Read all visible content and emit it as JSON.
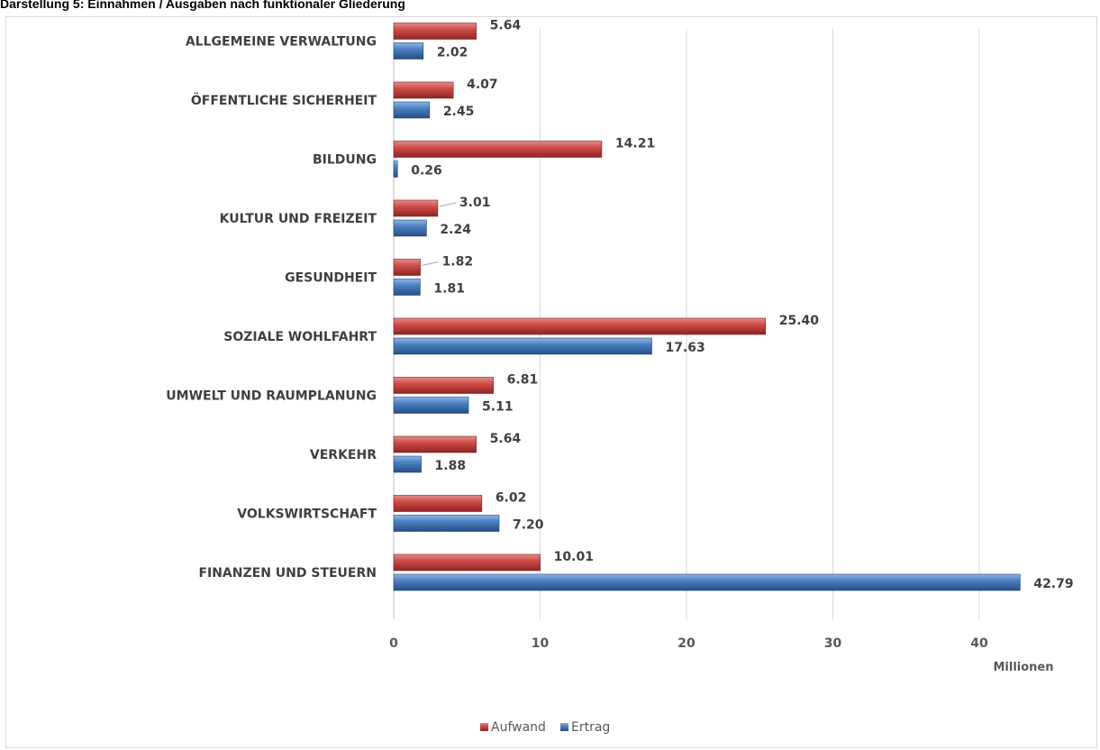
{
  "page": {
    "title": "Darstellung 5: Einnahmen / Ausgaben nach funktionaler Gliederung"
  },
  "chart_data": {
    "type": "bar",
    "orientation": "horizontal",
    "categories": [
      "ALLGEMEINE VERWALTUNG",
      "ÖFFENTLICHE SICHERHEIT",
      "BILDUNG",
      "KULTUR UND FREIZEIT",
      "GESUNDHEIT",
      "SOZIALE WOHLFAHRT",
      "UMWELT UND RAUMPLANUNG",
      "VERKEHR",
      "VOLKSWIRTSCHAFT",
      "FINANZEN UND STEUERN"
    ],
    "series": [
      {
        "name": "Aufwand",
        "color": "#c0504d",
        "values": [
          5.64,
          4.07,
          14.21,
          3.01,
          1.82,
          25.4,
          6.81,
          5.64,
          6.02,
          10.01
        ],
        "labels": [
          "5.64",
          "4.07",
          "14.21",
          "3.01",
          "1.82",
          "25.40",
          "6.81",
          "5.64",
          "6.02",
          "10.01"
        ]
      },
      {
        "name": "Ertrag",
        "color": "#4f81bd",
        "values": [
          2.02,
          2.45,
          0.26,
          2.24,
          1.81,
          17.63,
          5.11,
          1.88,
          7.2,
          42.79
        ],
        "labels": [
          "2.02",
          "2.45",
          "0.26",
          "2.24",
          "1.81",
          "17.63",
          "5.11",
          "1.88",
          "7.20",
          "42.79"
        ]
      }
    ],
    "xlim": [
      0,
      47
    ],
    "xticks": [
      0,
      10,
      20,
      30,
      40
    ],
    "xtick_labels": [
      "0",
      "10",
      "20",
      "30",
      "40"
    ],
    "xunit": "Millionen",
    "grid": true,
    "legend_position": "bottom"
  }
}
